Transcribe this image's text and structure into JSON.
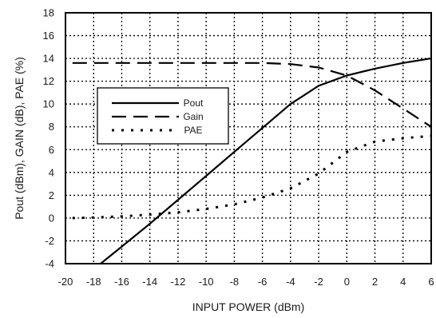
{
  "chart_data": {
    "type": "line",
    "xlabel": "INPUT POWER (dBm)",
    "ylabel": "Pout (dBm), GAIN (dB), PAE (%)",
    "xlim": [
      -20,
      6
    ],
    "ylim": [
      -4,
      18
    ],
    "xticks": [
      -20,
      -18,
      -16,
      -14,
      -12,
      -10,
      -8,
      -6,
      -4,
      -2,
      0,
      2,
      4,
      6
    ],
    "yticks": [
      -4,
      -2,
      0,
      2,
      4,
      6,
      8,
      10,
      12,
      14,
      16,
      18
    ],
    "grid": true,
    "legend_position": "left-middle",
    "series": [
      {
        "name": "Pout",
        "style": "solid",
        "color": "#000000",
        "x": [
          -17.5,
          -16,
          -14,
          -12,
          -10,
          -8,
          -6,
          -4,
          -2,
          0,
          2,
          4,
          6
        ],
        "y": [
          -4,
          -2.5,
          -0.5,
          1.6,
          3.7,
          5.8,
          7.9,
          10.0,
          11.6,
          12.5,
          13.1,
          13.6,
          14.0
        ]
      },
      {
        "name": "Gain",
        "style": "dashed",
        "color": "#000000",
        "x": [
          -19.5,
          -18,
          -16,
          -14,
          -12,
          -10,
          -8,
          -6,
          -4,
          -2,
          0,
          2,
          4,
          6
        ],
        "y": [
          13.6,
          13.6,
          13.6,
          13.6,
          13.6,
          13.6,
          13.6,
          13.6,
          13.5,
          13.2,
          12.5,
          11.2,
          9.6,
          8.0
        ]
      },
      {
        "name": "PAE",
        "style": "dotted",
        "color": "#000000",
        "x": [
          -19.5,
          -18,
          -16,
          -14,
          -12,
          -10,
          -8,
          -6,
          -4,
          -2,
          0,
          2,
          4,
          6
        ],
        "y": [
          0.0,
          0.05,
          0.15,
          0.3,
          0.5,
          0.8,
          1.2,
          1.8,
          2.6,
          3.9,
          5.8,
          6.7,
          7.0,
          7.2
        ]
      }
    ]
  }
}
